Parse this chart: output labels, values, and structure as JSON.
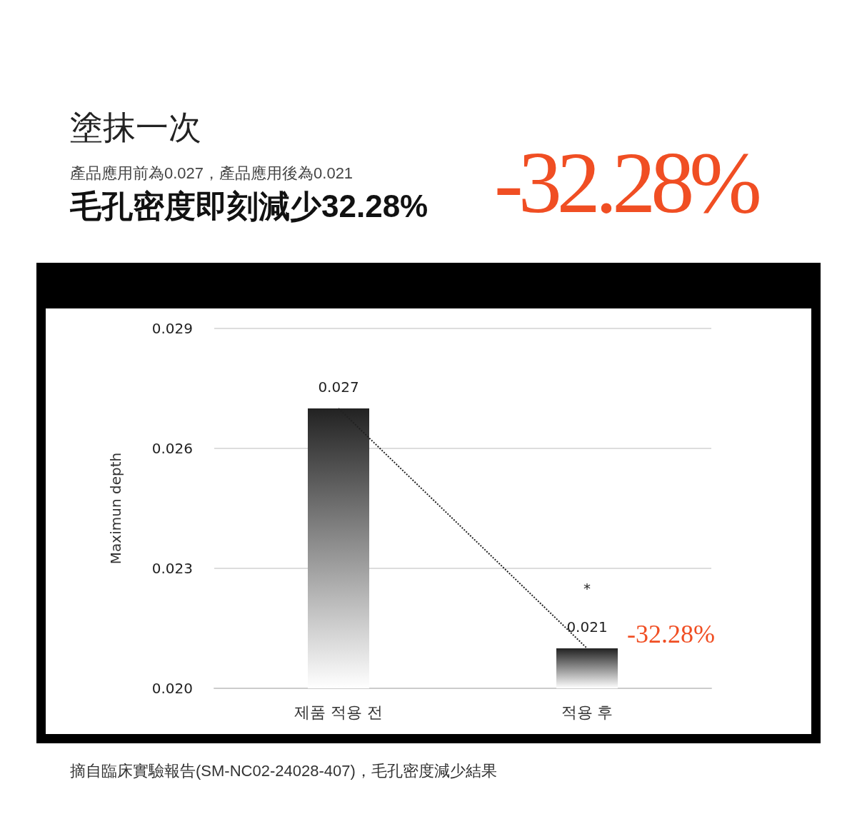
{
  "chart_data": {
    "type": "bar",
    "title": "塗抹一次",
    "subtitle": "產品應用前為0.027，產品應用後為0.021",
    "ylabel": "Maximun depth",
    "categories": [
      "제품 적용 전",
      "적용 후"
    ],
    "series": [
      {
        "color": "#222222",
        "values": [
          0.027,
          0.021
        ],
        "value_labels": [
          "0.027",
          "0.021"
        ]
      },
      {
        "type": "line",
        "color": "#222222",
        "values": [
          0.027,
          0.021
        ],
        "line_style": "dotted",
        "marker": "none"
      }
    ],
    "ylim": [
      0.02,
      0.029
    ],
    "yticks": [
      {
        "value": 0.02,
        "label": "0.020"
      },
      {
        "value": 0.023,
        "label": "0.023"
      },
      {
        "value": 0.026,
        "label": "0.026"
      },
      {
        "value": 0.029,
        "label": "0.029"
      }
    ],
    "grid": "y",
    "annotations": [
      "毛孔密度即刻減少32.28%",
      "-32.28%",
      "摘自臨床實驗報告(SM-NC02-24028-407)，毛孔密度減少結果",
      "*",
      "-32.28%"
    ]
  }
}
